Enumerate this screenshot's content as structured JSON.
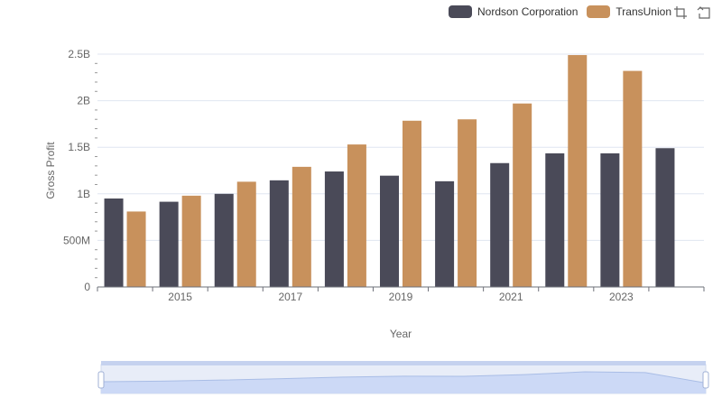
{
  "legend": {
    "items": [
      {
        "name": "Nordson Corporation",
        "color": "#4a4a58"
      },
      {
        "name": "TransUnion",
        "color": "#c8915c"
      }
    ]
  },
  "toolbox": {
    "icons": [
      "zoom-icon",
      "restore-icon"
    ]
  },
  "chart_data": {
    "type": "bar",
    "x": [
      2014,
      2015,
      2016,
      2017,
      2018,
      2019,
      2020,
      2021,
      2022,
      2023,
      2024
    ],
    "xticks": [
      "2015",
      "2017",
      "2019",
      "2021",
      "2023"
    ],
    "xlabel": "Year",
    "ylabel": "Gross Profit",
    "yticks": [
      "0",
      "500M",
      "1B",
      "1.5B",
      "2B",
      "2.5B"
    ],
    "ylim": [
      0,
      2500000000
    ],
    "grid": true,
    "legend_position": "top-right",
    "series": [
      {
        "name": "Nordson Corporation",
        "color": "#4a4a58",
        "values": [
          950000000,
          915000000,
          1000000000,
          1145000000,
          1240000000,
          1195000000,
          1135000000,
          1330000000,
          1435000000,
          1435000000,
          1490000000
        ]
      },
      {
        "name": "TransUnion",
        "color": "#c8915c",
        "values": [
          810000000,
          980000000,
          1130000000,
          1290000000,
          1530000000,
          1785000000,
          1800000000,
          1970000000,
          2490000000,
          2320000000,
          null
        ]
      }
    ],
    "data_zoom": {
      "start": 0,
      "end": 100
    }
  }
}
